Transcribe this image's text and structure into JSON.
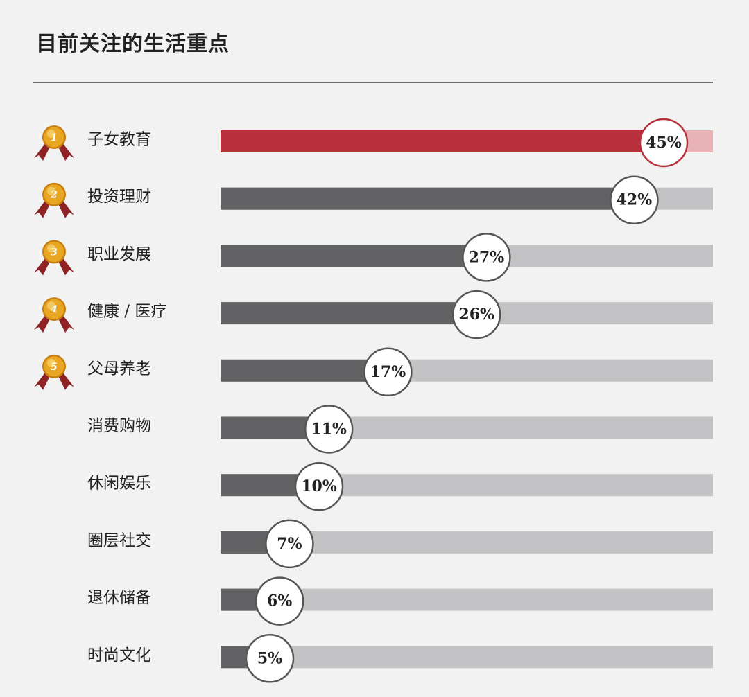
{
  "title": "目前关注的生活重点",
  "colors": {
    "highlight_fill": "#b7303b",
    "highlight_track": "#e9b3b6",
    "bar_fill": "#626264",
    "track": "#c3c3c5",
    "circle_stroke_highlight": "#b7303b",
    "circle_stroke": "#555555",
    "medal_gold": "#e8a623",
    "ribbon": "#8e2225"
  },
  "chart_data": {
    "type": "bar",
    "orientation": "horizontal",
    "categories": [
      "子女教育",
      "投资理财",
      "职业发展",
      "健康 / 医疗",
      "父母养老",
      "消费购物",
      "休闲娱乐",
      "圈层社交",
      "退休储备",
      "时尚文化"
    ],
    "values": [
      45,
      42,
      27,
      26,
      17,
      11,
      10,
      7,
      6,
      5
    ],
    "data_labels": [
      "45%",
      "42%",
      "27%",
      "26%",
      "17%",
      "11%",
      "10%",
      "7%",
      "6%",
      "5%"
    ],
    "medal_ranks": [
      "1",
      "2",
      "3",
      "4",
      "5"
    ],
    "xlim": [
      0,
      50
    ],
    "highlight_index": 0,
    "grid": false,
    "legend": "none"
  }
}
